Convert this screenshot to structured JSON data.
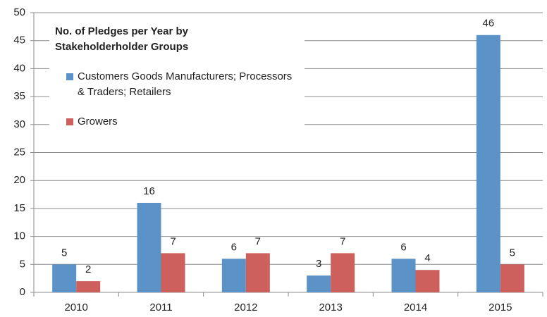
{
  "chart_data": {
    "type": "bar",
    "title": "No. of Pledges per Year by Stakeholderholder Groups",
    "categories": [
      "2010",
      "2011",
      "2012",
      "2013",
      "2014",
      "2015"
    ],
    "series": [
      {
        "name": "Customers Goods Manufacturers; Processors & Traders; Retailers",
        "color": "#5b93c9",
        "values": [
          5,
          16,
          6,
          3,
          6,
          46
        ]
      },
      {
        "name": "Growers",
        "color": "#cd5f5c",
        "values": [
          2,
          7,
          7,
          7,
          4,
          5
        ]
      }
    ],
    "ylim": [
      0,
      50
    ],
    "yticks": [
      0,
      5,
      10,
      15,
      20,
      25,
      30,
      35,
      40,
      45,
      50
    ],
    "grid": true,
    "legend": "upper left"
  }
}
